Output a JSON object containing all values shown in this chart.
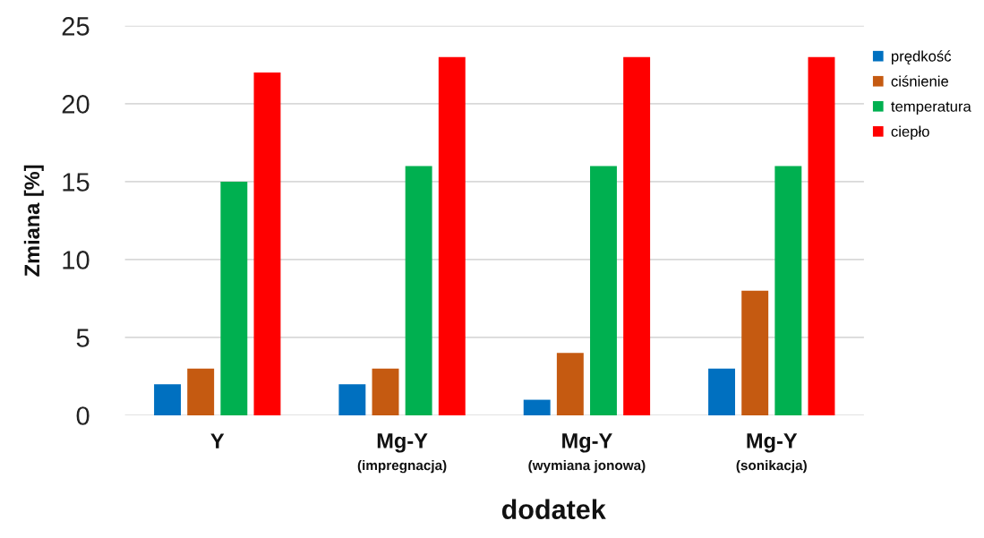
{
  "chart_data": {
    "type": "bar",
    "xlabel": "dodatek",
    "ylabel": "Zmiana [%]",
    "categories": [
      "Y",
      "Mg-Y\n(impregnacja)",
      "Mg-Y\n(wymiana jonowa)",
      "Mg-Y\n(sonikacja)"
    ],
    "series": [
      {
        "name": "prędkość",
        "color": "#0070c0",
        "values": [
          2,
          2,
          1,
          3
        ]
      },
      {
        "name": "ciśnienie",
        "color": "#c55a11",
        "values": [
          3,
          3,
          4,
          8
        ]
      },
      {
        "name": "temperatura",
        "color": "#00b050",
        "values": [
          15,
          16,
          16,
          16
        ]
      },
      {
        "name": "ciepło",
        "color": "#ff0000",
        "values": [
          22,
          23,
          23,
          23
        ]
      }
    ],
    "ylim": [
      0,
      25
    ],
    "yticks": [
      0,
      5,
      10,
      15,
      20,
      25
    ],
    "grid": "y",
    "legend": "top right"
  }
}
